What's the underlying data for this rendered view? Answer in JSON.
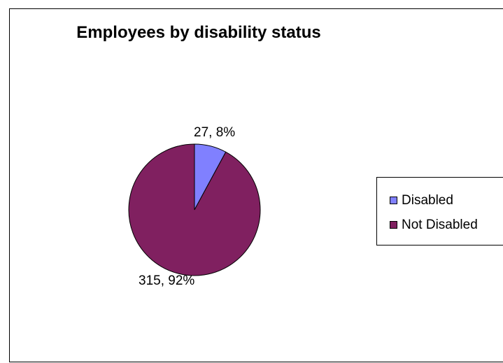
{
  "chart_data": {
    "type": "pie",
    "title": "Employees by disability status",
    "categories": [
      "Disabled",
      "Not Disabled"
    ],
    "values": [
      27,
      315
    ],
    "percentages": [
      "8%",
      "92%"
    ],
    "data_labels": [
      "27, 8%",
      "315, 92%"
    ],
    "colors": [
      "#8080FF",
      "#802060"
    ],
    "legend": {
      "position": "right",
      "entries": [
        "Disabled",
        "Not Disabled"
      ]
    }
  }
}
